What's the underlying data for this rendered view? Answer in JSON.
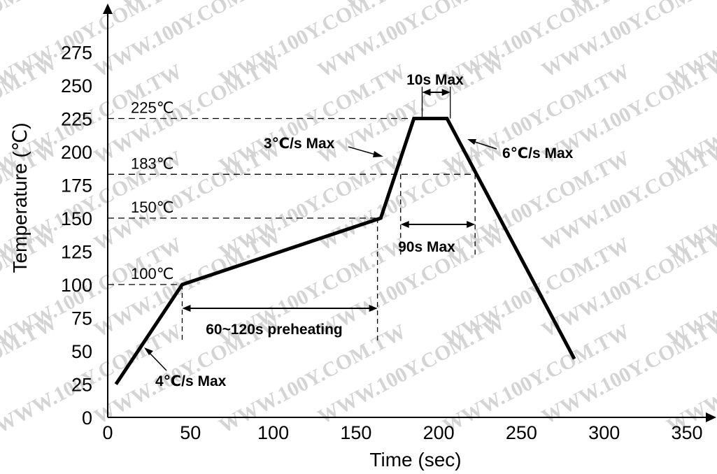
{
  "chart_data": {
    "type": "line",
    "xlabel": "Time (sec)",
    "ylabel": "Temperature (℃)",
    "xlim": [
      0,
      350
    ],
    "ylim": [
      0,
      275
    ],
    "x_ticks": [
      "0",
      "50",
      "100",
      "150",
      "200",
      "250",
      "300",
      "350"
    ],
    "y_ticks": [
      "0",
      "25",
      "50",
      "75",
      "100",
      "125",
      "150",
      "175",
      "200",
      "225",
      "250",
      "275"
    ],
    "grid": false,
    "series": [
      {
        "points": [
          {
            "x": 5,
            "y": 25
          },
          {
            "x": 45,
            "y": 100
          },
          {
            "x": 165,
            "y": 150
          },
          {
            "x": 185,
            "y": 225
          },
          {
            "x": 205,
            "y": 225
          },
          {
            "x": 282,
            "y": 44
          }
        ]
      }
    ],
    "reference_levels": [
      {
        "label": "225℃",
        "y": 225,
        "x_end": 190
      },
      {
        "label": "183℃",
        "y": 183,
        "x_end": 222
      },
      {
        "label": "150℃",
        "y": 150,
        "x_end": 162
      },
      {
        "label": "100℃",
        "y": 100,
        "x_end": 45
      }
    ],
    "durations": [
      {
        "label": "60~120s preheating",
        "from": 45,
        "to": 163
      },
      {
        "label": "90s Max",
        "from": 177,
        "to": 222
      },
      {
        "label": "10s Max",
        "from": 190,
        "to": 207
      }
    ],
    "rate_labels": [
      "4℃/s Max",
      "3℃/s Max",
      "6℃/s Max"
    ],
    "watermark": "WWW.100Y.COM.TW"
  }
}
